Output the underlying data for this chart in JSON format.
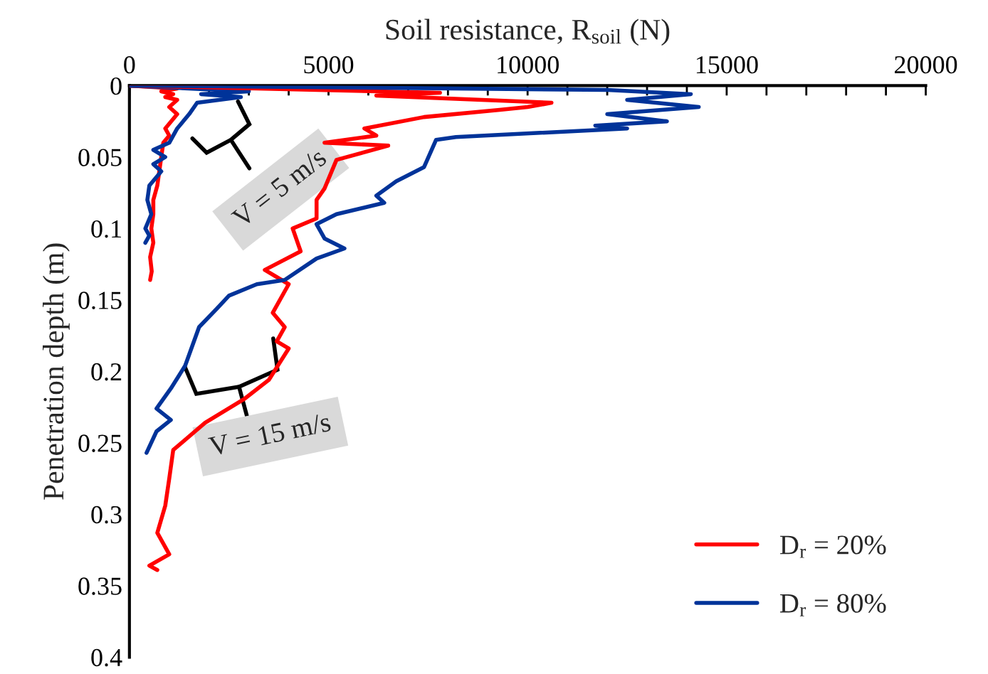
{
  "chart_data": {
    "type": "line",
    "xlabel": "Soil resistance, R$_{soil}$ (N)",
    "ylabel": "Penetration depth (m)",
    "xlim": [
      0,
      20000
    ],
    "xticks": [
      0,
      {
        "value": 1000,
        "label": null
      },
      {
        "value": 2000,
        "label": null
      },
      {
        "value": 3000,
        "label": null
      },
      {
        "value": 4000,
        "label": null
      },
      5000,
      {
        "value": 6000,
        "label": null
      },
      {
        "value": 7000,
        "label": null
      },
      {
        "value": 8000,
        "label": null
      },
      {
        "value": 9000,
        "label": null
      },
      10000,
      {
        "value": 11000,
        "label": null
      },
      {
        "value": 12000,
        "label": null
      },
      {
        "value": 13000,
        "label": null
      },
      {
        "value": 14000,
        "label": null
      },
      15000,
      {
        "value": 16000,
        "label": null
      },
      {
        "value": 17000,
        "label": null
      },
      {
        "value": 18000,
        "label": null
      },
      {
        "value": 19000,
        "label": null
      },
      20000
    ],
    "ylim": [
      0.4,
      0
    ],
    "yticks": [
      0,
      0.05,
      0.1,
      0.15,
      0.2,
      0.25,
      0.3,
      0.35,
      0.4
    ],
    "grid": false,
    "legend": "bottom right",
    "series": [
      {
        "name": "D$_{r}$ = 20%",
        "color": "#ff0000",
        "x": [
          0,
          1200,
          800,
          1100,
          900,
          1200,
          1000,
          1200,
          900,
          1000,
          850,
          800,
          750,
          700,
          600,
          600,
          550,
          600,
          520,
          560,
          520
        ],
        "values": [
          0,
          0.002,
          0.004,
          0.006,
          0.008,
          0.01,
          0.015,
          0.02,
          0.03,
          0.035,
          0.04,
          0.05,
          0.06,
          0.07,
          0.08,
          0.09,
          0.1,
          0.11,
          0.12,
          0.13,
          0.136
        ]
      },
      {
        "name": "D$_{r}$ = 80%",
        "color": "#003399",
        "x": [
          0,
          3000,
          1800,
          2800,
          1700,
          1500,
          1200,
          1000,
          600,
          900,
          600,
          800,
          500,
          450,
          550,
          400,
          500,
          400
        ],
        "values": [
          0,
          0.004,
          0.006,
          0.008,
          0.012,
          0.02,
          0.03,
          0.04,
          0.045,
          0.05,
          0.055,
          0.06,
          0.07,
          0.08,
          0.09,
          0.1,
          0.105,
          0.11
        ]
      },
      {
        "color": "#ff0000",
        "x": [
          0,
          7800,
          6200,
          10600,
          10000,
          9300,
          7400,
          5900,
          6200,
          4900,
          6500,
          5200,
          4900,
          4700,
          4700,
          4100,
          4300,
          3400,
          4000,
          3600,
          3900,
          3700,
          4000,
          3500,
          2900,
          1900,
          1100,
          1000,
          900,
          700,
          1000,
          500,
          700
        ],
        "values": [
          0,
          0.005,
          0.007,
          0.012,
          0.015,
          0.017,
          0.022,
          0.03,
          0.035,
          0.04,
          0.042,
          0.052,
          0.072,
          0.08,
          0.093,
          0.1,
          0.116,
          0.129,
          0.139,
          0.159,
          0.169,
          0.179,
          0.184,
          0.206,
          0.219,
          0.236,
          0.255,
          0.275,
          0.294,
          0.313,
          0.328,
          0.336,
          0.339
        ]
      },
      {
        "color": "#003399",
        "x": [
          0,
          12000,
          14100,
          12500,
          14300,
          12000,
          13500,
          11700,
          12500,
          8200,
          7700,
          7400,
          6700,
          6200,
          6400,
          5200,
          4700,
          4900,
          5400,
          4700,
          3900,
          3200,
          2500,
          2200,
          1750,
          1400,
          1040,
          680,
          1040,
          680,
          430
        ],
        "values": [
          0,
          0.003,
          0.006,
          0.01,
          0.015,
          0.02,
          0.025,
          0.028,
          0.03,
          0.036,
          0.038,
          0.057,
          0.067,
          0.077,
          0.082,
          0.09,
          0.097,
          0.107,
          0.114,
          0.121,
          0.136,
          0.139,
          0.147,
          0.156,
          0.169,
          0.196,
          0.212,
          0.226,
          0.234,
          0.242,
          0.257
        ]
      }
    ],
    "annotations": [
      "V = 5 m/s",
      "V = 15 m/s"
    ]
  }
}
